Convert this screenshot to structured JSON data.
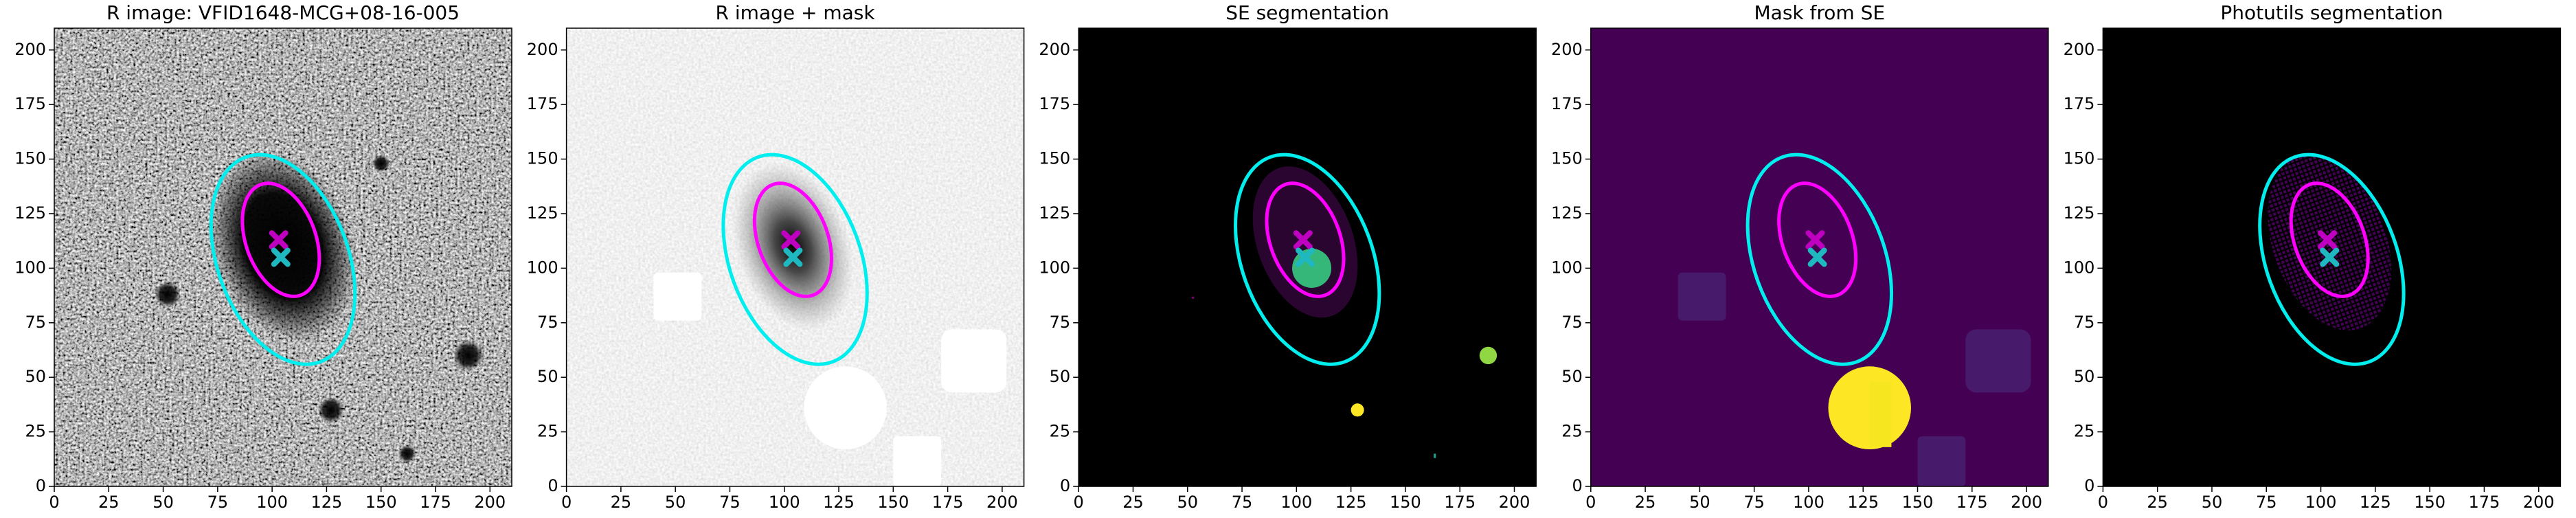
{
  "chart_data": [
    {
      "type": "image",
      "title": "R image: VFID1648-MCG+08-16-005",
      "xlim": [
        0,
        210
      ],
      "ylim": [
        0,
        210
      ],
      "xticks": [
        0,
        25,
        50,
        75,
        100,
        125,
        150,
        175,
        200
      ],
      "yticks": [
        0,
        25,
        50,
        75,
        100,
        125,
        150,
        175,
        200
      ],
      "ellipses": [
        {
          "color": "#00eeee",
          "x": 105,
          "y": 104,
          "a": 50,
          "b": 30,
          "angle": 110
        },
        {
          "color": "#ff00ff",
          "x": 104,
          "y": 113,
          "a": 27,
          "b": 16,
          "angle": 110
        }
      ],
      "markers": [
        {
          "color": "#c000c0",
          "x": 103,
          "y": 113
        },
        {
          "color": "#20b8c0",
          "x": 104,
          "y": 105
        }
      ]
    },
    {
      "type": "image",
      "title": "R image + mask",
      "xlim": [
        0,
        210
      ],
      "ylim": [
        0,
        210
      ],
      "xticks": [
        0,
        25,
        50,
        75,
        100,
        125,
        150,
        175,
        200
      ],
      "yticks": [
        0,
        25,
        50,
        75,
        100,
        125,
        150,
        175,
        200
      ],
      "ellipses": [
        {
          "color": "#00eeee",
          "x": 105,
          "y": 104,
          "a": 50,
          "b": 30,
          "angle": 110
        },
        {
          "color": "#ff00ff",
          "x": 104,
          "y": 113,
          "a": 27,
          "b": 16,
          "angle": 110
        }
      ],
      "markers": [
        {
          "color": "#c000c0",
          "x": 103,
          "y": 113
        },
        {
          "color": "#20b8c0",
          "x": 104,
          "y": 105
        }
      ]
    },
    {
      "type": "image",
      "title": "SE segmentation",
      "xlim": [
        0,
        210
      ],
      "ylim": [
        0,
        210
      ],
      "xticks": [
        0,
        25,
        50,
        75,
        100,
        125,
        150,
        175,
        200
      ],
      "yticks": [
        0,
        25,
        50,
        75,
        100,
        125,
        150,
        175,
        200
      ],
      "ellipses": [
        {
          "color": "#00eeee",
          "x": 105,
          "y": 104,
          "a": 50,
          "b": 30,
          "angle": 110
        },
        {
          "color": "#ff00ff",
          "x": 104,
          "y": 113,
          "a": 27,
          "b": 16,
          "angle": 110
        }
      ],
      "markers": [
        {
          "color": "#c000c0",
          "x": 103,
          "y": 113
        },
        {
          "color": "#20b8c0",
          "x": 104,
          "y": 105
        }
      ]
    },
    {
      "type": "image",
      "title": "Mask from SE",
      "xlim": [
        0,
        210
      ],
      "ylim": [
        0,
        210
      ],
      "xticks": [
        0,
        25,
        50,
        75,
        100,
        125,
        150,
        175,
        200
      ],
      "yticks": [
        0,
        25,
        50,
        75,
        100,
        125,
        150,
        175,
        200
      ],
      "ellipses": [
        {
          "color": "#00eeee",
          "x": 105,
          "y": 104,
          "a": 50,
          "b": 30,
          "angle": 110
        },
        {
          "color": "#ff00ff",
          "x": 104,
          "y": 113,
          "a": 27,
          "b": 16,
          "angle": 110
        }
      ],
      "markers": [
        {
          "color": "#c000c0",
          "x": 103,
          "y": 113
        },
        {
          "color": "#20b8c0",
          "x": 104,
          "y": 105
        }
      ]
    },
    {
      "type": "image",
      "title": "Photutils segmentation",
      "xlim": [
        0,
        210
      ],
      "ylim": [
        0,
        210
      ],
      "xticks": [
        0,
        25,
        50,
        75,
        100,
        125,
        150,
        175,
        200
      ],
      "yticks": [
        0,
        25,
        50,
        75,
        100,
        125,
        150,
        175,
        200
      ],
      "ellipses": [
        {
          "color": "#00eeee",
          "x": 105,
          "y": 104,
          "a": 50,
          "b": 30,
          "angle": 110
        },
        {
          "color": "#ff00ff",
          "x": 104,
          "y": 113,
          "a": 27,
          "b": 16,
          "angle": 110
        }
      ],
      "markers": [
        {
          "color": "#c000c0",
          "x": 103,
          "y": 113
        },
        {
          "color": "#20b8c0",
          "x": 104,
          "y": 105
        }
      ]
    }
  ]
}
